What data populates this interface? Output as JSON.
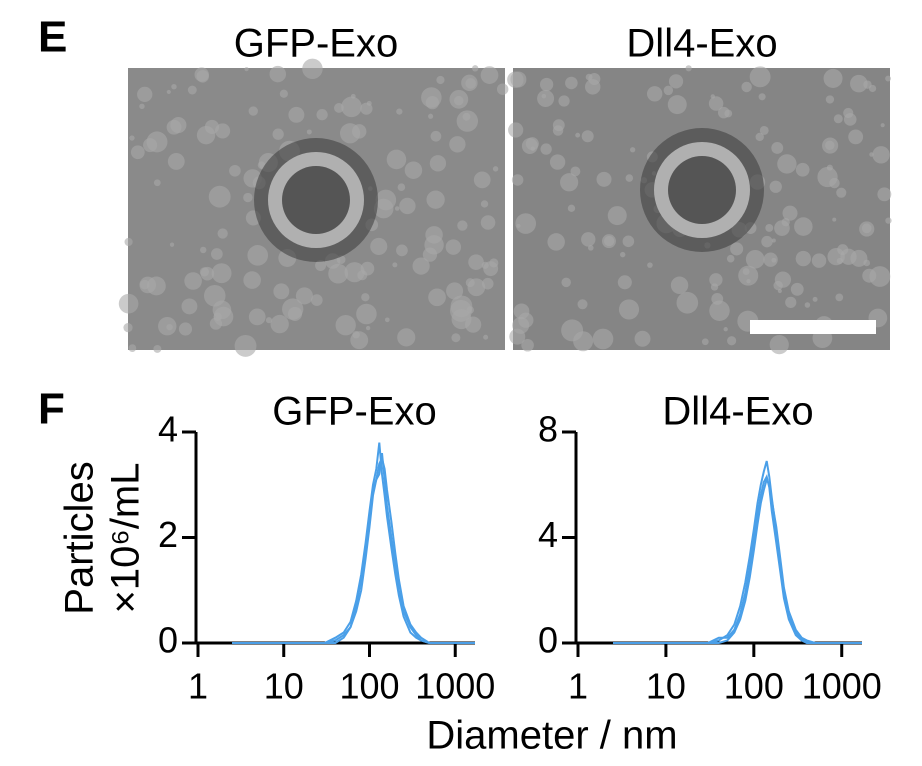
{
  "panels": [
    {
      "label": "E",
      "image_titles": [
        "GFP-Exo",
        "Dll4-Exo"
      ]
    },
    {
      "label": "F"
    }
  ],
  "chart_data": [
    {
      "type": "line",
      "title": "GFP-Exo",
      "ylabel": [
        "Particles",
        "×10⁶/mL"
      ],
      "xlabel": "Diameter / nm",
      "log_x": true,
      "xlim": [
        1,
        1700
      ],
      "xticks": [
        1,
        10,
        100,
        1000
      ],
      "ylim": [
        0,
        4
      ],
      "yticks": [
        0,
        2,
        4
      ],
      "x": [
        2.5,
        30,
        40,
        50,
        60,
        70,
        80,
        90,
        100,
        110,
        120,
        130,
        140,
        150,
        160,
        180,
        200,
        220,
        250,
        300,
        350,
        400,
        500,
        1000,
        1700
      ],
      "series": [
        {
          "color": "#4a9fe8",
          "values": [
            0,
            0,
            0.1,
            0.2,
            0.4,
            0.8,
            1.3,
            1.9,
            2.5,
            3.0,
            3.3,
            3.8,
            3.2,
            2.8,
            2.4,
            1.8,
            1.3,
            0.9,
            0.5,
            0.2,
            0.1,
            0.05,
            0,
            0,
            0
          ]
        },
        {
          "color": "#4a9fe8",
          "values": [
            0,
            0,
            0,
            0.1,
            0.3,
            0.6,
            1.0,
            1.6,
            2.2,
            2.8,
            3.1,
            3.2,
            3.6,
            3.1,
            2.6,
            2.0,
            1.5,
            1.0,
            0.6,
            0.3,
            0.15,
            0.05,
            0,
            0,
            0
          ]
        },
        {
          "color": "#4a9fe8",
          "values": [
            0,
            0,
            0.05,
            0.15,
            0.3,
            0.7,
            1.2,
            1.8,
            2.4,
            2.9,
            3.1,
            3.4,
            3.5,
            3.3,
            2.9,
            2.3,
            1.7,
            1.2,
            0.7,
            0.35,
            0.2,
            0.1,
            0,
            0,
            0
          ]
        }
      ]
    },
    {
      "type": "line",
      "title": "Dll4-Exo",
      "log_x": true,
      "xlim": [
        1,
        1700
      ],
      "xticks": [
        1,
        10,
        100,
        1000
      ],
      "ylim": [
        0,
        8
      ],
      "yticks": [
        0,
        4,
        8
      ],
      "x": [
        2.5,
        30,
        40,
        50,
        60,
        70,
        80,
        90,
        100,
        110,
        120,
        130,
        140,
        150,
        160,
        180,
        200,
        220,
        250,
        300,
        350,
        400,
        500,
        1000,
        1700
      ],
      "series": [
        {
          "color": "#4a9fe8",
          "values": [
            0,
            0,
            0.1,
            0.3,
            0.7,
            1.4,
            2.3,
            3.3,
            4.3,
            5.3,
            6.0,
            6.5,
            6.9,
            6.3,
            5.5,
            4.2,
            3.0,
            2.0,
            1.0,
            0.4,
            0.15,
            0.05,
            0,
            0,
            0
          ]
        },
        {
          "color": "#4a9fe8",
          "values": [
            0,
            0,
            0.2,
            0.2,
            0.5,
            1.1,
            1.9,
            2.9,
            3.9,
            4.9,
            5.6,
            6.1,
            6.3,
            5.9,
            5.0,
            3.8,
            2.7,
            1.7,
            0.9,
            0.3,
            0.1,
            0,
            0,
            0,
            0
          ]
        },
        {
          "color": "#4a9fe8",
          "values": [
            0,
            0,
            0,
            0.1,
            0.4,
            0.9,
            1.6,
            2.5,
            3.5,
            4.5,
            5.3,
            5.8,
            6.2,
            6.0,
            5.4,
            4.4,
            3.2,
            2.1,
            1.2,
            0.5,
            0.2,
            0.1,
            0,
            0,
            0
          ]
        }
      ]
    }
  ]
}
